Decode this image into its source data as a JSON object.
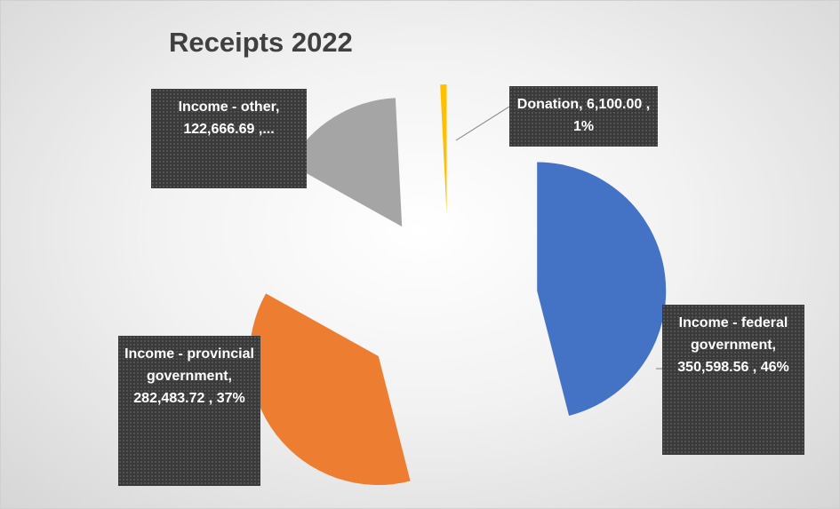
{
  "chart_data": {
    "type": "pie",
    "title": "Receipts 2022",
    "categories": [
      "Income - federal government",
      "Income - provincial government",
      "Income - other",
      "Donation"
    ],
    "values": [
      350598.56,
      282483.72,
      122666.69,
      6100
    ],
    "value_labels": [
      "Income - federal government, 350,598.56 , 46%",
      "Income - provincial government, 282,483.72 , 37%",
      "Income - other, 122,666.69 ,...",
      "Donation, 6,100.00 , 1%"
    ],
    "colors": [
      "#4472c4",
      "#ed7d31",
      "#a5a5a5",
      "#ffc000"
    ],
    "exploded": true
  }
}
